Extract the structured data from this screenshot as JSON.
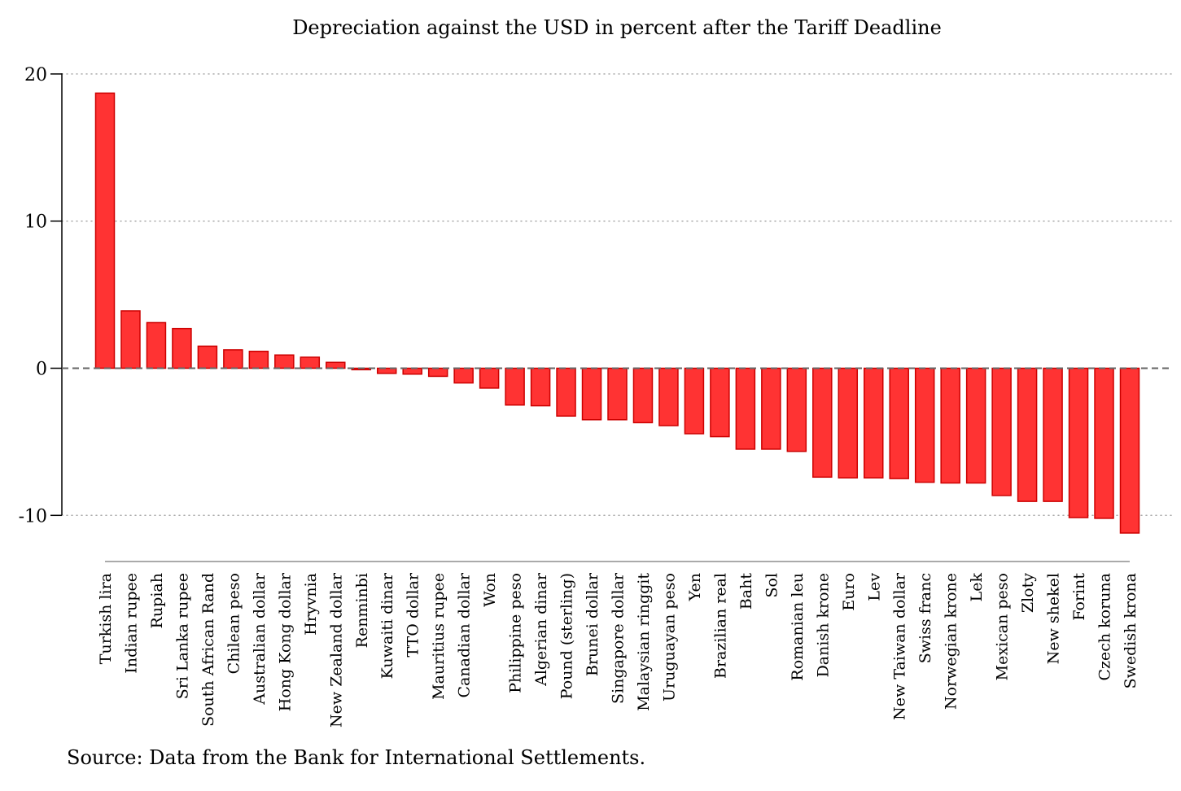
{
  "chart_data": {
    "type": "bar",
    "title": "Depreciation against the USD in percent after the Tariff Deadline",
    "xlabel": "",
    "ylabel": "",
    "ylim": [
      -12,
      20
    ],
    "yticks": [
      20,
      10,
      0,
      -10
    ],
    "grid": "horizontal dotted",
    "reference_line": 0,
    "bar_color": "#ff3333",
    "bar_edge_color": "#cc0000",
    "categories": [
      "Turkish lira",
      "Indian rupee",
      "Rupiah",
      "Sri Lanka rupee",
      "South African Rand",
      "Chilean peso",
      "Australian dollar",
      "Hong Kong dollar",
      "Hryvnia",
      "New Zealand dollar",
      "Renminbi",
      "Kuwaiti dinar",
      "TTO dollar",
      "Mauritius rupee",
      "Canadian dollar",
      "Won",
      "Philippine peso",
      "Algerian dinar",
      "Pound (sterling)",
      "Brunei dollar",
      "Singapore dollar",
      "Malaysian ringgit",
      "Uruguayan peso",
      "Yen",
      "Brazilian real",
      "Baht",
      "Sol",
      "Romanian leu",
      "Danish krone",
      "Euro",
      "Lev",
      "New Taiwan dollar",
      "Swiss franc",
      "Norwegian krone",
      "Lek",
      "Mexican peso",
      "Zloty",
      "New shekel",
      "Forint",
      "Czech koruna",
      "Swedish krona"
    ],
    "values": [
      18.7,
      3.9,
      3.1,
      2.7,
      1.5,
      1.25,
      1.15,
      0.9,
      0.75,
      0.4,
      -0.1,
      -0.35,
      -0.4,
      -0.55,
      -1.0,
      -1.35,
      -2.5,
      -2.55,
      -3.25,
      -3.5,
      -3.5,
      -3.7,
      -3.9,
      -4.45,
      -4.65,
      -5.5,
      -5.5,
      -5.65,
      -7.4,
      -7.45,
      -7.45,
      -7.5,
      -7.75,
      -7.8,
      -7.8,
      -8.65,
      -9.05,
      -9.05,
      -10.15,
      -10.2,
      -11.2
    ],
    "source": "Source: Data from the Bank for International Settlements."
  }
}
